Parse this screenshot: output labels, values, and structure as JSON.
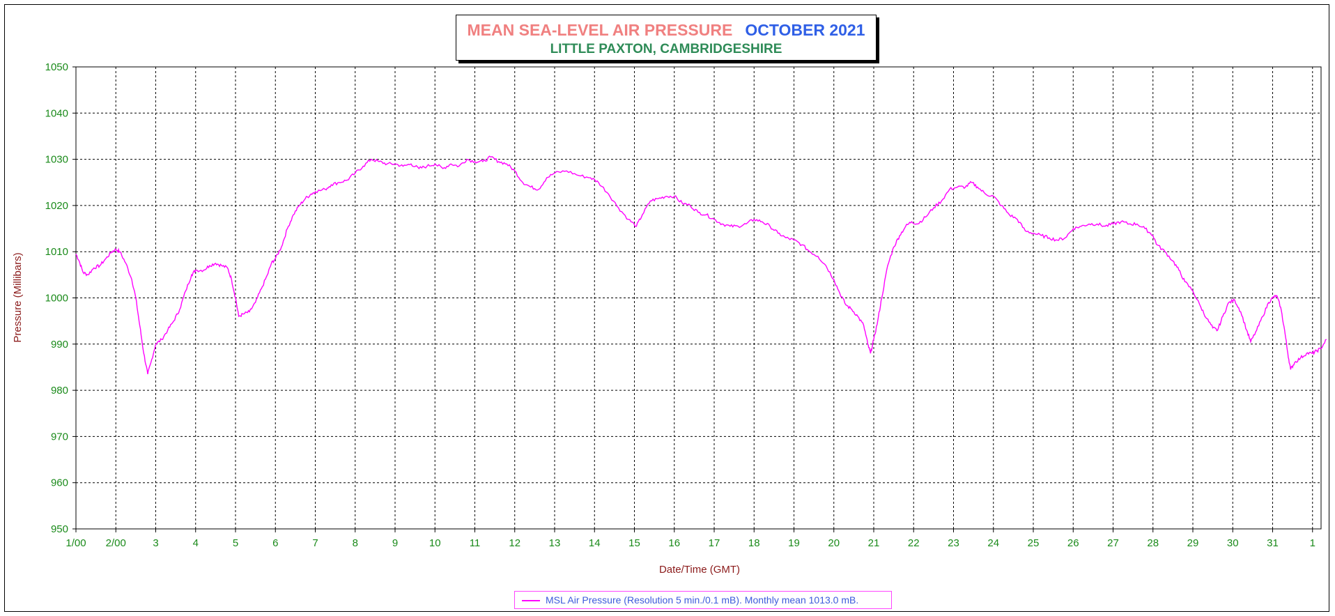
{
  "chart_data": {
    "type": "line",
    "title": "MEAN SEA-LEVEL AIR PRESSURE",
    "title_period": "OCTOBER 2021",
    "subtitle": "LITTLE PAXTON, CAMBRIDGESHIRE",
    "xlabel": "Date/Time (GMT)",
    "ylabel": "Pressure (Millibars)",
    "ylim": [
      950,
      1050
    ],
    "xlim": [
      1.0,
      32.35
    ],
    "y_ticks": [
      "950",
      "960",
      "970",
      "980",
      "990",
      "1000",
      "1010",
      "1020",
      "1030",
      "1040",
      "1050"
    ],
    "x_ticks": [
      "1/00",
      "2/00",
      "3",
      "4",
      "5",
      "6",
      "7",
      "8",
      "9",
      "10",
      "11",
      "12",
      "13",
      "14",
      "15",
      "16",
      "17",
      "18",
      "19",
      "20",
      "21",
      "22",
      "23",
      "24",
      "25",
      "26",
      "27",
      "28",
      "29",
      "30",
      "31",
      "1"
    ],
    "grid": true,
    "line_color": "#ff00ff",
    "series": [
      {
        "name": "MSL Air Pressure (Resolution 5 min./0.1 mB). Monthly mean 1013.0 mB.",
        "points": [
          [
            1.0,
            1009.5
          ],
          [
            1.08,
            1008
          ],
          [
            1.18,
            1005.5
          ],
          [
            1.3,
            1005
          ],
          [
            1.45,
            1006.5
          ],
          [
            1.6,
            1007
          ],
          [
            1.75,
            1008.5
          ],
          [
            1.9,
            1010
          ],
          [
            2.0,
            1010.5
          ],
          [
            2.1,
            1010
          ],
          [
            2.25,
            1007.5
          ],
          [
            2.4,
            1004
          ],
          [
            2.5,
            1000
          ],
          [
            2.6,
            994
          ],
          [
            2.7,
            988
          ],
          [
            2.8,
            983.5
          ],
          [
            2.88,
            986
          ],
          [
            3.0,
            990
          ],
          [
            3.15,
            991
          ],
          [
            3.3,
            993
          ],
          [
            3.45,
            995
          ],
          [
            3.6,
            997.5
          ],
          [
            3.75,
            1001.5
          ],
          [
            3.9,
            1005
          ],
          [
            4.0,
            1006
          ],
          [
            4.2,
            1006
          ],
          [
            4.35,
            1007
          ],
          [
            4.5,
            1007.5
          ],
          [
            4.65,
            1007
          ],
          [
            4.8,
            1006.5
          ],
          [
            4.9,
            1004
          ],
          [
            5.0,
            1000
          ],
          [
            5.08,
            996
          ],
          [
            5.2,
            996.5
          ],
          [
            5.35,
            997
          ],
          [
            5.5,
            999
          ],
          [
            5.65,
            1002
          ],
          [
            5.8,
            1005
          ],
          [
            5.9,
            1007.5
          ],
          [
            6.0,
            1008.5
          ],
          [
            6.15,
            1011
          ],
          [
            6.3,
            1015
          ],
          [
            6.45,
            1018
          ],
          [
            6.6,
            1020
          ],
          [
            6.75,
            1021.5
          ],
          [
            6.9,
            1022.5
          ],
          [
            7.0,
            1023
          ],
          [
            7.25,
            1023.5
          ],
          [
            7.4,
            1024.5
          ],
          [
            7.6,
            1025
          ],
          [
            7.8,
            1025.5
          ],
          [
            8.0,
            1027
          ],
          [
            8.2,
            1028.5
          ],
          [
            8.4,
            1030
          ],
          [
            8.6,
            1029.5
          ],
          [
            8.8,
            1029
          ],
          [
            9.0,
            1029
          ],
          [
            9.2,
            1028.5
          ],
          [
            9.4,
            1029
          ],
          [
            9.6,
            1028
          ],
          [
            9.8,
            1028.5
          ],
          [
            10.0,
            1029
          ],
          [
            10.2,
            1028
          ],
          [
            10.4,
            1029
          ],
          [
            10.6,
            1028.5
          ],
          [
            10.8,
            1030
          ],
          [
            11.0,
            1029.5
          ],
          [
            11.2,
            1029.5
          ],
          [
            11.4,
            1030.5
          ],
          [
            11.6,
            1029.5
          ],
          [
            11.8,
            1029
          ],
          [
            12.0,
            1027.5
          ],
          [
            12.2,
            1025
          ],
          [
            12.4,
            1024
          ],
          [
            12.6,
            1023.5
          ],
          [
            12.8,
            1026
          ],
          [
            13.0,
            1027
          ],
          [
            13.3,
            1027.5
          ],
          [
            13.6,
            1026.5
          ],
          [
            13.9,
            1026
          ],
          [
            14.1,
            1025
          ],
          [
            14.35,
            1022.5
          ],
          [
            14.6,
            1019.5
          ],
          [
            14.85,
            1017
          ],
          [
            15.05,
            1015.5
          ],
          [
            15.2,
            1018
          ],
          [
            15.4,
            1021
          ],
          [
            15.6,
            1021.5
          ],
          [
            15.8,
            1022
          ],
          [
            16.0,
            1022
          ],
          [
            16.2,
            1020.5
          ],
          [
            16.4,
            1020
          ],
          [
            16.6,
            1018.5
          ],
          [
            16.8,
            1018
          ],
          [
            17.0,
            1017
          ],
          [
            17.2,
            1016
          ],
          [
            17.4,
            1015.5
          ],
          [
            17.6,
            1015.5
          ],
          [
            17.8,
            1016
          ],
          [
            18.0,
            1017
          ],
          [
            18.2,
            1016.5
          ],
          [
            18.4,
            1015.5
          ],
          [
            18.6,
            1014
          ],
          [
            18.8,
            1013
          ],
          [
            19.0,
            1012.5
          ],
          [
            19.2,
            1011.5
          ],
          [
            19.4,
            1010
          ],
          [
            19.6,
            1009
          ],
          [
            19.8,
            1007
          ],
          [
            20.0,
            1004
          ],
          [
            20.15,
            1001
          ],
          [
            20.3,
            998.5
          ],
          [
            20.45,
            997.5
          ],
          [
            20.6,
            996
          ],
          [
            20.75,
            994
          ],
          [
            20.85,
            990
          ],
          [
            20.92,
            988
          ],
          [
            21.0,
            991
          ],
          [
            21.1,
            995
          ],
          [
            21.2,
            1000
          ],
          [
            21.35,
            1007
          ],
          [
            21.5,
            1011
          ],
          [
            21.65,
            1013.5
          ],
          [
            21.8,
            1015.5
          ],
          [
            21.95,
            1016.5
          ],
          [
            22.1,
            1016
          ],
          [
            22.3,
            1017.5
          ],
          [
            22.5,
            1019.5
          ],
          [
            22.7,
            1021
          ],
          [
            22.9,
            1023.5
          ],
          [
            23.1,
            1024
          ],
          [
            23.3,
            1024
          ],
          [
            23.45,
            1025
          ],
          [
            23.6,
            1024
          ],
          [
            23.8,
            1022.5
          ],
          [
            24.0,
            1022
          ],
          [
            24.2,
            1020
          ],
          [
            24.4,
            1018
          ],
          [
            24.6,
            1017
          ],
          [
            24.8,
            1014.5
          ],
          [
            25.0,
            1014
          ],
          [
            25.2,
            1013.5
          ],
          [
            25.4,
            1013
          ],
          [
            25.6,
            1012.5
          ],
          [
            25.8,
            1013
          ],
          [
            26.0,
            1015
          ],
          [
            26.2,
            1015.5
          ],
          [
            26.4,
            1016
          ],
          [
            26.6,
            1016
          ],
          [
            26.8,
            1015.5
          ],
          [
            27.0,
            1016
          ],
          [
            27.2,
            1016.5
          ],
          [
            27.4,
            1016
          ],
          [
            27.6,
            1016
          ],
          [
            27.8,
            1015
          ],
          [
            28.0,
            1013.5
          ],
          [
            28.1,
            1011.5
          ],
          [
            28.3,
            1010
          ],
          [
            28.5,
            1008
          ],
          [
            28.65,
            1006
          ],
          [
            28.8,
            1003.5
          ],
          [
            29.0,
            1001.5
          ],
          [
            29.2,
            998
          ],
          [
            29.35,
            995.5
          ],
          [
            29.5,
            993.5
          ],
          [
            29.62,
            993
          ],
          [
            29.75,
            996
          ],
          [
            29.9,
            999
          ],
          [
            30.05,
            999.5
          ],
          [
            30.2,
            997
          ],
          [
            30.35,
            993
          ],
          [
            30.45,
            990.5
          ],
          [
            30.6,
            993
          ],
          [
            30.75,
            996
          ],
          [
            30.9,
            999
          ],
          [
            31.0,
            1000
          ],
          [
            31.1,
            1000.5
          ],
          [
            31.2,
            998
          ],
          [
            31.3,
            993
          ],
          [
            31.38,
            988
          ],
          [
            31.45,
            984.5
          ],
          [
            31.55,
            986
          ],
          [
            31.7,
            987
          ],
          [
            31.85,
            988
          ],
          [
            32.0,
            988
          ],
          [
            32.1,
            988.5
          ],
          [
            32.2,
            989
          ],
          [
            32.35,
            991
          ]
        ]
      }
    ]
  }
}
